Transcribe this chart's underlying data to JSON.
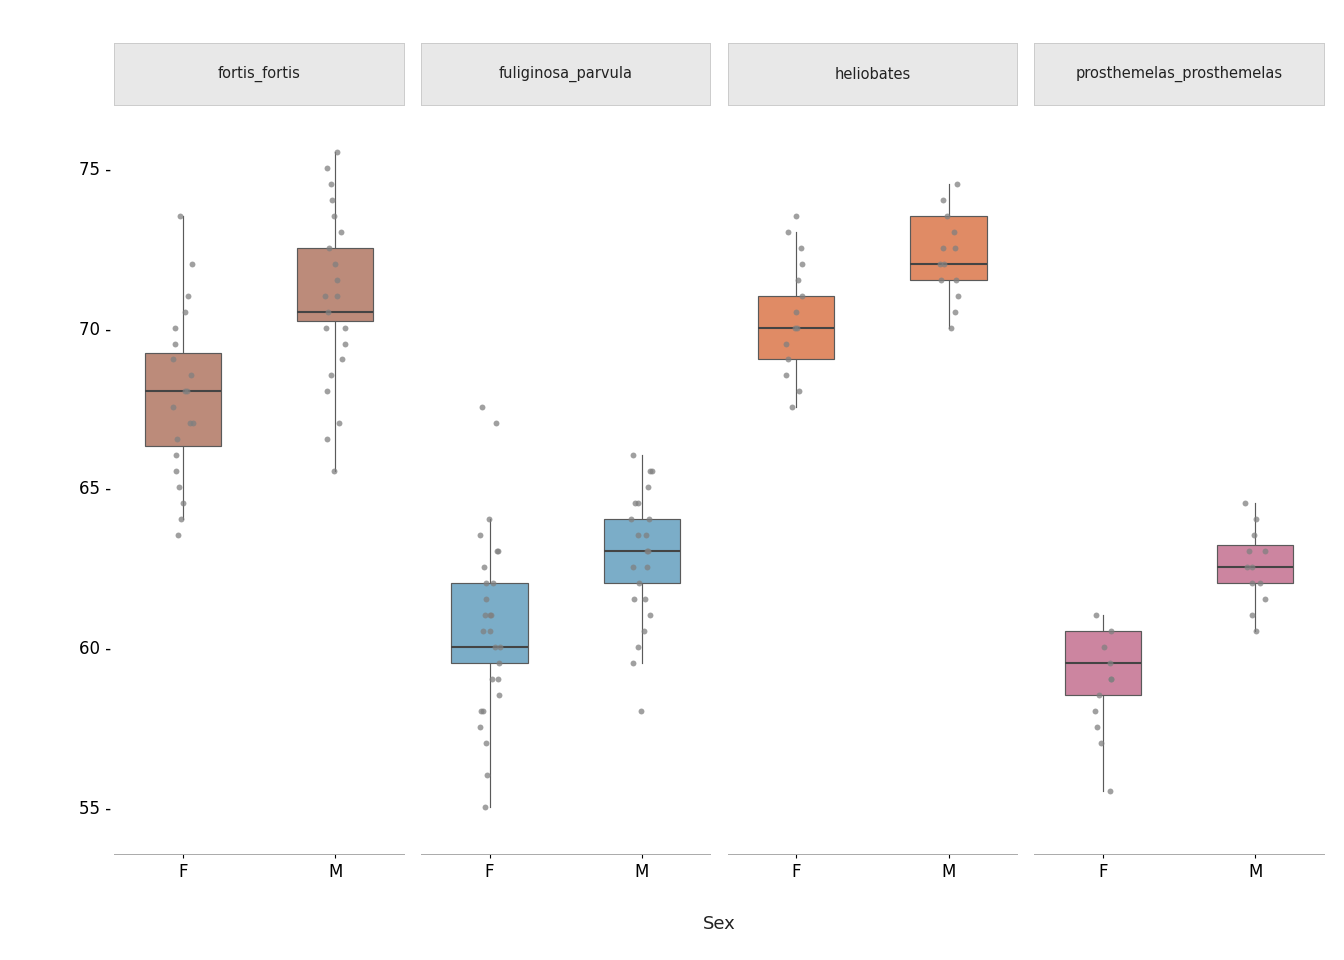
{
  "species": [
    "fortis_fortis",
    "fuliginosa_parvula",
    "heliobates",
    "prosthemelas_prosthemelas"
  ],
  "species_colors": [
    "#BC8B7A",
    "#7BADC8",
    "#E08B65",
    "#CC85A0"
  ],
  "sexes": [
    "F",
    "M"
  ],
  "xlabel": "Sex",
  "ylim": [
    53.5,
    76.5
  ],
  "yticks": [
    55,
    60,
    65,
    70,
    75
  ],
  "background_color": "#FFFFFF",
  "strip_background": "#E8E8E8",
  "dot_color": "#808080",
  "dot_alpha": 0.75,
  "dot_size": 18,
  "box_width": 0.5,
  "jitter_std": 0.07,
  "box_data": {
    "fortis_fortis": {
      "F": {
        "q1": 66.3,
        "median": 68.0,
        "q3": 69.2,
        "whisker_low": 64.0,
        "whisker_high": 73.5,
        "points": [
          73.5,
          72.0,
          71.0,
          70.5,
          70.0,
          69.5,
          69.0,
          68.5,
          68.0,
          68.0,
          67.5,
          67.0,
          67.0,
          66.5,
          66.0,
          65.5,
          65.0,
          64.5,
          64.0,
          63.5
        ]
      },
      "M": {
        "q1": 70.2,
        "median": 70.5,
        "q3": 72.5,
        "whisker_low": 65.5,
        "whisker_high": 75.5,
        "points": [
          75.5,
          75.0,
          74.5,
          74.0,
          73.5,
          73.0,
          72.5,
          72.0,
          71.5,
          71.0,
          71.0,
          70.5,
          70.0,
          70.0,
          69.5,
          69.0,
          68.5,
          68.0,
          67.0,
          65.5,
          66.5
        ]
      }
    },
    "fuliginosa_parvula": {
      "F": {
        "q1": 59.5,
        "median": 60.0,
        "q3": 62.0,
        "whisker_low": 55.0,
        "whisker_high": 64.0,
        "points": [
          64.0,
          63.5,
          63.0,
          62.5,
          62.0,
          61.5,
          61.0,
          61.0,
          60.5,
          60.0,
          60.0,
          59.5,
          59.0,
          59.0,
          58.5,
          58.0,
          58.0,
          57.5,
          57.0,
          56.0,
          55.0,
          63.0,
          62.0,
          61.0,
          60.5,
          67.5,
          67.0
        ]
      },
      "M": {
        "q1": 62.0,
        "median": 63.0,
        "q3": 64.0,
        "whisker_low": 59.5,
        "whisker_high": 66.0,
        "points": [
          66.0,
          65.5,
          65.0,
          64.5,
          64.0,
          64.0,
          63.5,
          63.0,
          63.0,
          62.5,
          62.0,
          61.5,
          61.0,
          60.5,
          60.0,
          59.5,
          64.5,
          63.5,
          62.5,
          61.5,
          65.5,
          58.0
        ]
      }
    },
    "heliobates": {
      "F": {
        "q1": 69.0,
        "median": 70.0,
        "q3": 71.0,
        "whisker_low": 67.5,
        "whisker_high": 73.0,
        "points": [
          73.0,
          72.5,
          72.0,
          71.5,
          71.0,
          70.5,
          70.0,
          70.0,
          69.5,
          69.0,
          68.5,
          68.0,
          67.5,
          73.5
        ]
      },
      "M": {
        "q1": 71.5,
        "median": 72.0,
        "q3": 73.5,
        "whisker_low": 70.0,
        "whisker_high": 74.5,
        "points": [
          74.5,
          74.0,
          73.5,
          73.0,
          72.5,
          72.0,
          72.0,
          71.5,
          71.0,
          70.5,
          70.0,
          71.5,
          72.5
        ]
      }
    },
    "prosthemelas_prosthemelas": {
      "F": {
        "q1": 58.5,
        "median": 59.5,
        "q3": 60.5,
        "whisker_low": 55.5,
        "whisker_high": 61.0,
        "points": [
          61.0,
          60.5,
          60.0,
          59.5,
          59.0,
          58.5,
          58.0,
          57.5,
          57.0,
          55.5,
          59.0
        ]
      },
      "M": {
        "q1": 62.0,
        "median": 62.5,
        "q3": 63.2,
        "whisker_low": 60.5,
        "whisker_high": 64.5,
        "points": [
          64.5,
          64.0,
          63.5,
          63.0,
          62.5,
          62.0,
          61.5,
          61.0,
          60.5,
          62.0,
          62.5,
          63.0
        ]
      }
    }
  }
}
